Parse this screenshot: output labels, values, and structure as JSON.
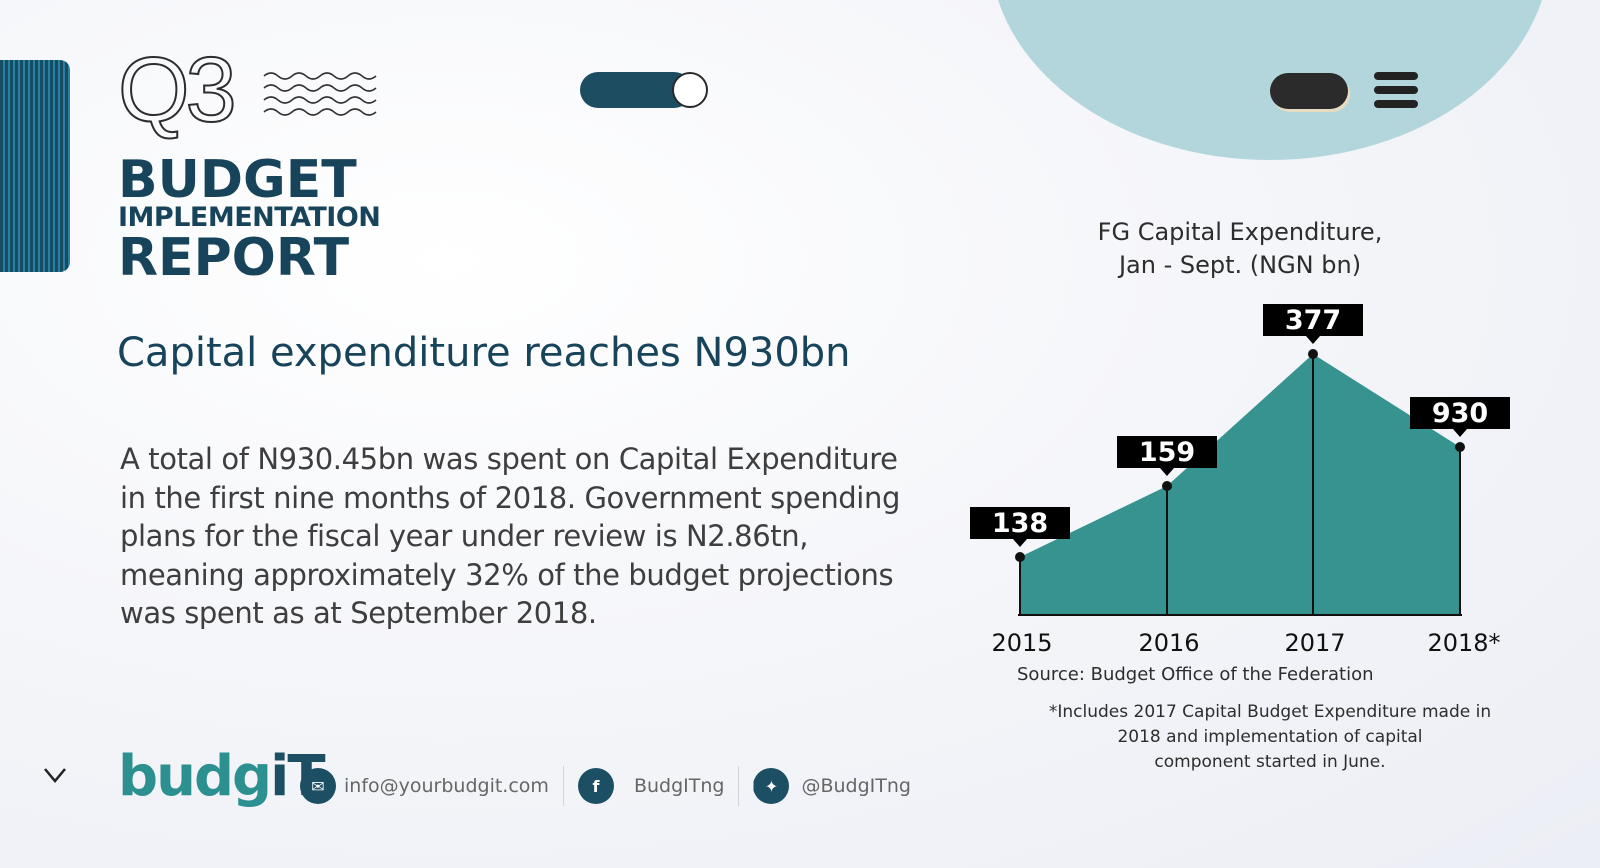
{
  "header": {
    "quarter": "Q3",
    "title_line1": "BUDGET",
    "title_line2": "IMPLEMENTATION",
    "title_line3": "REPORT"
  },
  "headline": "Capital expenditure reaches N930bn",
  "paragraph": "A total of N930.45bn was spent on Capital Expenditure in the first nine months of 2018. Government spending plans for the fiscal year under review is N2.86tn, meaning approximately 32% of the budget projections was spent as at September 2018.",
  "brand": {
    "logo_main": "budg",
    "logo_accent": "iT",
    "email": "info@yourbudgit.com",
    "facebook": "BudgITng",
    "twitter": "@BudgITng",
    "teal": "#2d9090",
    "navy": "#17445a"
  },
  "icons": {
    "menu": "hamburger-menu-icon",
    "toggle": "toggle-switch-icon",
    "scroll": "chevron-down-icon",
    "email": "email-icon",
    "facebook": "facebook-icon",
    "twitter": "twitter-icon"
  },
  "chart_data": {
    "type": "area",
    "title_line1": "FG Capital Expenditure,",
    "title_line2": "Jan - Sept. (NGN bn)",
    "categories": [
      "2015",
      "2016",
      "2017",
      "2018*"
    ],
    "values": [
      138,
      159,
      377,
      930
    ],
    "labels": [
      "138",
      "159",
      "377",
      "930"
    ],
    "fill_color": "#36938f",
    "source": "Source: Budget Office of the Federation",
    "footnote_line1": "*Includes 2017 Capital Budget Expenditure made in",
    "footnote_line2": "2018 and implementation of capital",
    "footnote_line3": "component started in June."
  }
}
